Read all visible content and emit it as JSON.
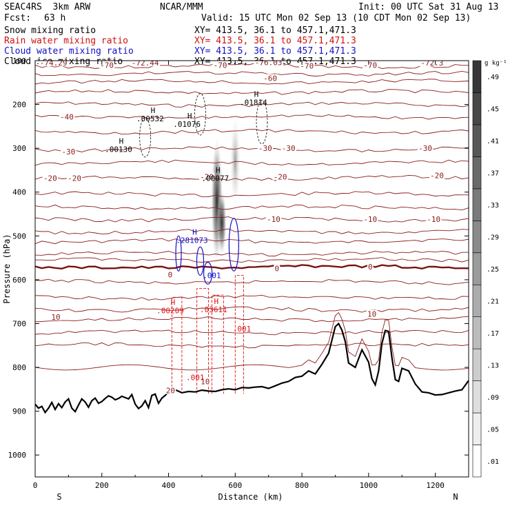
{
  "header": {
    "model": "SEAC4RS  3km ARW",
    "org": "NCAR/MMM",
    "init": "Init: 00 UTC Sat 31 Aug 13",
    "fcst_label": "Fcst:",
    "fcst_value": "63 h",
    "valid": "Valid: 15 UTC Mon 02 Sep 13 (10 CDT Mon 02 Sep 13)",
    "fields": [
      {
        "name": "Snow mixing ratio",
        "xy": "XY= 413.5, 36.1 to 457.1,471.3",
        "color": "#000000"
      },
      {
        "name": "Rain water mixing ratio",
        "xy": "XY= 413.5, 36.1 to 457.1,471.3",
        "color": "#d01010"
      },
      {
        "name": "Cloud water mixing ratio",
        "xy": "XY= 413.5, 36.1 to 457.1,471.3",
        "color": "#1010c8"
      },
      {
        "name": "Cloud ice mixing ratio",
        "xy": "XY= 413.5, 36.1 to 457.1,471.3",
        "color": "#000000"
      }
    ]
  },
  "chart_data": {
    "type": "cross-section contour",
    "xlabel": "Distance (km)",
    "ylabel": "Pressure (hPa)",
    "xlim": [
      0,
      1300
    ],
    "ylim": [
      1050,
      100
    ],
    "xticks": [
      0,
      200,
      400,
      600,
      800,
      1000,
      1200
    ],
    "yticks": [
      100,
      200,
      300,
      400,
      500,
      600,
      700,
      800,
      900,
      1000
    ],
    "x_end_labels": {
      "left": "S",
      "right": "N"
    },
    "colorbar": {
      "unit": "g kg⁻¹",
      "levels": [
        ".01",
        ".05",
        ".09",
        ".13",
        ".17",
        ".21",
        ".25",
        ".29",
        ".33",
        ".37",
        ".41",
        ".45",
        ".49"
      ]
    },
    "temperature_contour_labels": [
      {
        "text": "-74.29",
        "x": 55,
        "p": 105
      },
      {
        "text": "-70",
        "x": 215,
        "p": 110
      },
      {
        "text": "-72.44",
        "x": 330,
        "p": 105
      },
      {
        "text": "-70",
        "x": 555,
        "p": 110
      },
      {
        "text": "-76.03",
        "x": 700,
        "p": 104
      },
      {
        "text": "-70",
        "x": 815,
        "p": 112
      },
      {
        "text": "-70",
        "x": 1005,
        "p": 110
      },
      {
        "text": "-72.3",
        "x": 1190,
        "p": 105
      },
      {
        "text": "-60",
        "x": 705,
        "p": 140
      },
      {
        "text": "-40",
        "x": 95,
        "p": 228
      },
      {
        "text": "-30",
        "x": 100,
        "p": 308
      },
      {
        "text": "-30",
        "x": 690,
        "p": 300
      },
      {
        "text": "-30",
        "x": 760,
        "p": 300
      },
      {
        "text": "-30",
        "x": 1170,
        "p": 300
      },
      {
        "text": "-20",
        "x": 45,
        "p": 368
      },
      {
        "text": "-20",
        "x": 118,
        "p": 368
      },
      {
        "text": "-20",
        "x": 515,
        "p": 365
      },
      {
        "text": "-20",
        "x": 735,
        "p": 365
      },
      {
        "text": "-20",
        "x": 1205,
        "p": 362
      },
      {
        "text": "-10",
        "x": 715,
        "p": 462
      },
      {
        "text": "-10",
        "x": 1005,
        "p": 462
      },
      {
        "text": "-10",
        "x": 1195,
        "p": 462
      },
      {
        "text": "0",
        "x": 405,
        "p": 588
      },
      {
        "text": "0",
        "x": 725,
        "p": 574
      },
      {
        "text": "0",
        "x": 1005,
        "p": 570
      },
      {
        "text": "10",
        "x": 62,
        "p": 685
      },
      {
        "text": "10",
        "x": 1010,
        "p": 678
      },
      {
        "text": "10",
        "x": 510,
        "p": 832
      },
      {
        "text": "20",
        "x": 406,
        "p": 853
      }
    ],
    "extrema_labels": [
      {
        "type": "H",
        "value": ".00130",
        "x": 250,
        "p": 302,
        "field": "snow"
      },
      {
        "type": "H",
        "value": ".00532",
        "x": 345,
        "p": 232,
        "field": "snow"
      },
      {
        "type": "H",
        "value": ".01076",
        "x": 455,
        "p": 245,
        "field": "snow"
      },
      {
        "type": "H",
        "value": ".01814",
        "x": 655,
        "p": 195,
        "field": "snow"
      },
      {
        "type": "H",
        "value": ".00077",
        "x": 540,
        "p": 368,
        "field": "ice"
      },
      {
        "type": "H",
        "value": ".281073",
        "x": 470,
        "p": 510,
        "field": "cloud"
      },
      {
        "type": "",
        "value": ".001",
        "x": 530,
        "p": 590,
        "field": "cloud"
      },
      {
        "type": "H",
        "value": ".00209",
        "x": 405,
        "p": 670,
        "field": "rain"
      },
      {
        "type": "H",
        "value": ".03611",
        "x": 535,
        "p": 668,
        "field": "rain"
      },
      {
        "type": "",
        "value": ".001",
        "x": 620,
        "p": 712,
        "field": "rain"
      },
      {
        "type": "",
        "value": ".001",
        "x": 480,
        "p": 823,
        "field": "rain"
      }
    ],
    "terrain": {
      "x": [
        0,
        10,
        20,
        30,
        40,
        50,
        60,
        70,
        80,
        90,
        100,
        110,
        120,
        130,
        140,
        150,
        160,
        170,
        180,
        190,
        200,
        210,
        220,
        230,
        240,
        250,
        260,
        270,
        280,
        290,
        300,
        310,
        320,
        330,
        340,
        350,
        360,
        370,
        380,
        390,
        400,
        420,
        440,
        460,
        480,
        500,
        520,
        540,
        560,
        580,
        600,
        620,
        640,
        660,
        680,
        700,
        720,
        740,
        760,
        780,
        800,
        820,
        840,
        860,
        880,
        900,
        910,
        920,
        930,
        940,
        960,
        980,
        1000,
        1010,
        1020,
        1030,
        1040,
        1050,
        1060,
        1070,
        1080,
        1090,
        1100,
        1120,
        1140,
        1160,
        1180,
        1200,
        1220,
        1240,
        1260,
        1280,
        1300
      ],
      "p": [
        884,
        893,
        889,
        903,
        893,
        880,
        896,
        883,
        892,
        879,
        872,
        893,
        901,
        886,
        872,
        879,
        891,
        876,
        870,
        882,
        878,
        871,
        865,
        868,
        874,
        871,
        866,
        869,
        872,
        862,
        884,
        894,
        888,
        876,
        892,
        864,
        861,
        882,
        870,
        864,
        856,
        851,
        858,
        855,
        856,
        852,
        854,
        855,
        851,
        849,
        851,
        846,
        847,
        845,
        844,
        848,
        842,
        836,
        832,
        823,
        820,
        808,
        815,
        793,
        768,
        707,
        700,
        715,
        741,
        790,
        800,
        760,
        788,
        826,
        840,
        808,
        745,
        716,
        718,
        778,
        828,
        832,
        802,
        808,
        838,
        856,
        858,
        863,
        862,
        858,
        854,
        851,
        830
      ]
    }
  }
}
